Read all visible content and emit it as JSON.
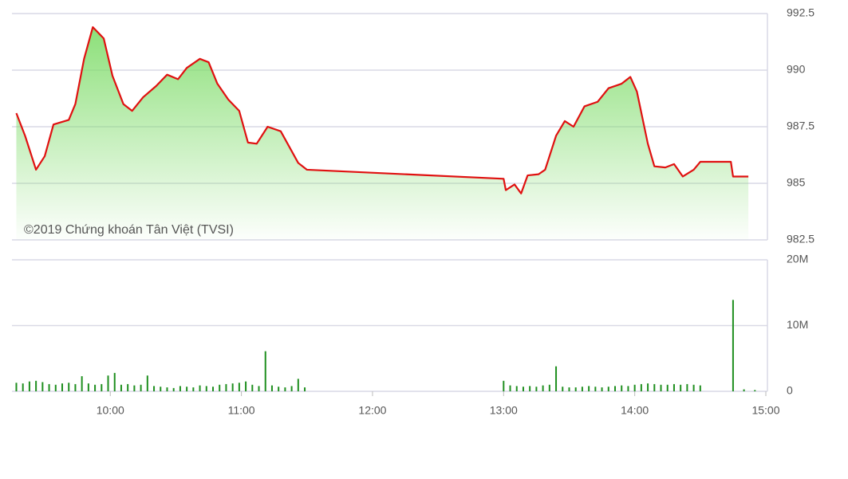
{
  "chart_data": [
    {
      "type": "area",
      "annotation": "©2019 Chứng khoán Tân Việt (TVSI)",
      "color": "#e01010",
      "fill": "#7fdc6a",
      "x": [
        "09:17",
        "09:21",
        "09:26",
        "09:30",
        "09:34",
        "09:41",
        "09:44",
        "09:48",
        "09:52",
        "09:57",
        "10:01",
        "10:06",
        "10:10",
        "10:15",
        "10:21",
        "10:26",
        "10:31",
        "10:35",
        "10:41",
        "10:45",
        "10:49",
        "10:54",
        "10:59",
        "11:03",
        "11:07",
        "11:12",
        "11:18",
        "11:22",
        "11:26",
        "11:30",
        "13:00",
        "13:01",
        "13:05",
        "13:08",
        "13:11",
        "13:16",
        "13:19",
        "13:24",
        "13:28",
        "13:32",
        "13:37",
        "13:43",
        "13:48",
        "13:54",
        "13:58",
        "14:01",
        "14:06",
        "14:09",
        "14:14",
        "14:18",
        "14:22",
        "14:27",
        "14:30",
        "14:44",
        "14:45",
        "14:52"
      ],
      "values": [
        988.1,
        987.1,
        985.6,
        986.2,
        987.6,
        987.8,
        988.5,
        990.5,
        991.9,
        991.4,
        989.75,
        988.5,
        988.2,
        988.8,
        989.3,
        989.8,
        989.6,
        990.1,
        990.5,
        990.35,
        989.4,
        988.7,
        988.2,
        986.8,
        986.75,
        987.5,
        987.3,
        986.6,
        985.9,
        985.6,
        985.2,
        984.7,
        984.95,
        984.55,
        985.35,
        985.4,
        985.6,
        987.1,
        987.75,
        987.5,
        988.4,
        988.6,
        989.2,
        989.4,
        989.7,
        989.05,
        986.75,
        985.75,
        985.7,
        985.85,
        985.3,
        985.6,
        985.95,
        985.95,
        985.3,
        985.3
      ],
      "xlim": [
        "09:15",
        "15:00"
      ],
      "ylim": [
        982.5,
        992.5
      ],
      "yticks": [
        982.5,
        985,
        987.5,
        990,
        992.5
      ],
      "grid": true
    },
    {
      "type": "bar",
      "color": "#1f8f1f",
      "x": [
        "09:17",
        "09:20",
        "09:23",
        "09:26",
        "09:29",
        "09:32",
        "09:35",
        "09:38",
        "09:41",
        "09:44",
        "09:47",
        "09:50",
        "09:53",
        "09:56",
        "09:59",
        "10:02",
        "10:05",
        "10:08",
        "10:11",
        "10:14",
        "10:17",
        "10:20",
        "10:23",
        "10:26",
        "10:29",
        "10:32",
        "10:35",
        "10:38",
        "10:41",
        "10:44",
        "10:47",
        "10:50",
        "10:53",
        "10:56",
        "10:59",
        "11:02",
        "11:05",
        "11:08",
        "11:11",
        "11:14",
        "11:17",
        "11:20",
        "11:23",
        "11:26",
        "11:29",
        "13:00",
        "13:03",
        "13:06",
        "13:09",
        "13:12",
        "13:15",
        "13:18",
        "13:21",
        "13:24",
        "13:27",
        "13:30",
        "13:33",
        "13:36",
        "13:39",
        "13:42",
        "13:45",
        "13:48",
        "13:51",
        "13:54",
        "13:57",
        "14:00",
        "14:03",
        "14:06",
        "14:09",
        "14:12",
        "14:15",
        "14:18",
        "14:21",
        "14:24",
        "14:27",
        "14:30",
        "14:45",
        "14:50",
        "14:55"
      ],
      "values": [
        1300000,
        1200000,
        1500000,
        1600000,
        1400000,
        1100000,
        1000000,
        1200000,
        1300000,
        1100000,
        2300000,
        1200000,
        1000000,
        1100000,
        2400000,
        2800000,
        1000000,
        1100000,
        900000,
        1000000,
        2400000,
        800000,
        700000,
        600000,
        500000,
        800000,
        700000,
        600000,
        900000,
        800000,
        700000,
        1000000,
        1100000,
        1200000,
        1300000,
        1500000,
        1000000,
        800000,
        6100000,
        900000,
        700000,
        600000,
        800000,
        1900000,
        600000,
        1600000,
        900000,
        800000,
        700000,
        800000,
        700000,
        900000,
        1000000,
        3800000,
        700000,
        600000,
        600000,
        700000,
        800000,
        700000,
        600000,
        700000,
        800000,
        900000,
        800000,
        1000000,
        1100000,
        1200000,
        1100000,
        1000000,
        1000000,
        1100000,
        1000000,
        1100000,
        1000000,
        900000,
        13900000,
        300000,
        200000
      ],
      "xlim": [
        "09:15",
        "15:00"
      ],
      "xticks": [
        "10:00",
        "11:00",
        "12:00",
        "13:00",
        "14:00",
        "15:00"
      ],
      "ylim": [
        0,
        20000000
      ],
      "yticks": [
        0,
        {
          "value": 10000000,
          "label": "10M"
        },
        {
          "value": 20000000,
          "label": "20M"
        }
      ],
      "grid": true
    }
  ]
}
